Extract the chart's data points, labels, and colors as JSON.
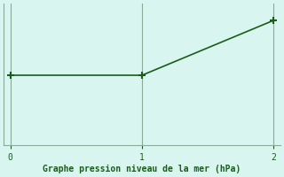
{
  "x": [
    0,
    1,
    2
  ],
  "y": [
    1013.2,
    1013.2,
    1016.5
  ],
  "line_color": "#1a5c1a",
  "marker": "+",
  "marker_size": 6,
  "marker_linewidth": 1.5,
  "background_color": "#d8f5f0",
  "grid_color": "#8aaa9a",
  "spine_color": "#8aaa9a",
  "xlabel": "Graphe pression niveau de la mer (hPa)",
  "xlabel_color": "#1a5c1a",
  "xlabel_fontsize": 7,
  "xticks": [
    0,
    1,
    2
  ],
  "tick_color": "#1a5c1a",
  "tick_fontsize": 7,
  "figsize": [
    3.2,
    2.0
  ],
  "dpi": 100,
  "linewidth": 1.2,
  "ylim": [
    1009.0,
    1017.5
  ],
  "xlim": [
    -0.05,
    2.05
  ]
}
